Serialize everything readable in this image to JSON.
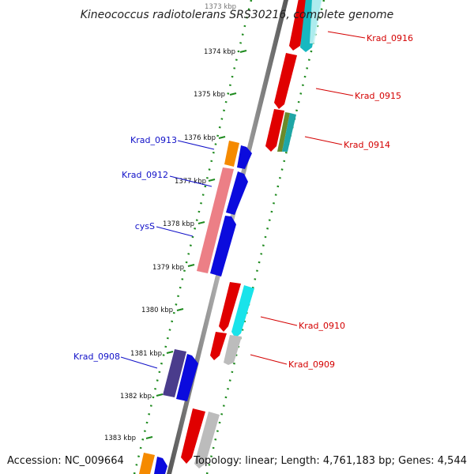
{
  "title": "Kineococcus radiotolerans SRS30216, complete genome",
  "footer": {
    "accession": "Accession: NC_009664",
    "topology": "Topology: linear; Length: 4,761,183 bp; Genes: 4,544"
  },
  "colors": {
    "forward_label": "#1010c8",
    "reverse_label": "#d40000",
    "axis": "#8a8a8a",
    "dots": "#1e8a1e"
  },
  "ticks": [
    "1373 kbp",
    "1374 kbp",
    "1375 kbp",
    "1376 kbp",
    "1377 kbp",
    "1378 kbp",
    "1379 kbp",
    "1380 kbp",
    "1381 kbp",
    "1382 kbp",
    "1383 kbp"
  ],
  "labels": {
    "forward": [
      "Krad_0913",
      "Krad_0912",
      "cysS",
      "Krad_0908"
    ],
    "reverse": [
      "Krad_0916",
      "Krad_0915",
      "Krad_0914",
      "Krad_0910",
      "Krad_0909"
    ]
  }
}
